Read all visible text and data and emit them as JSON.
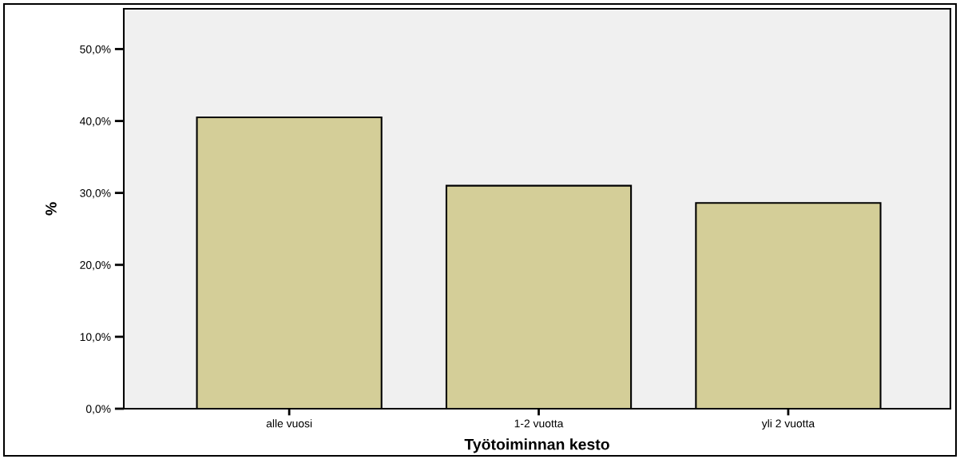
{
  "chart_data": {
    "type": "bar",
    "xlabel": "Työtoiminnan kesto",
    "ylabel": "%",
    "categories": [
      "alle vuosi",
      "1-2 vuotta",
      "yli 2 vuotta"
    ],
    "values": [
      40.5,
      31.0,
      28.6
    ],
    "color": "#d4ce98",
    "ylim": [
      0,
      55.6
    ],
    "yticks": [
      {
        "value": 0,
        "label": "0,0%"
      },
      {
        "value": 10,
        "label": "10,0%"
      },
      {
        "value": 20,
        "label": "20,0%"
      },
      {
        "value": 30,
        "label": "30,0%"
      },
      {
        "value": 40,
        "label": "40,0%"
      },
      {
        "value": 50,
        "label": "50,0%"
      }
    ],
    "grid": false
  }
}
